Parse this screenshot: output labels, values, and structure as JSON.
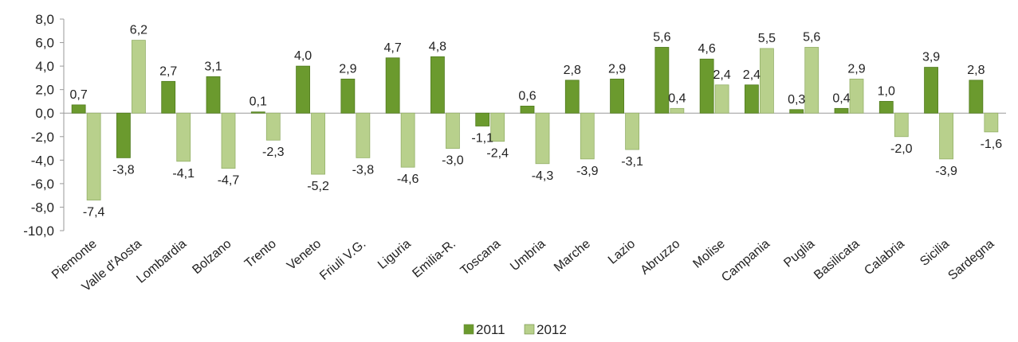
{
  "chart_data": {
    "type": "bar",
    "categories": [
      "Piemonte",
      "Valle d'Aosta",
      "Lombardia",
      "Bolzano",
      "Trento",
      "Veneto",
      "Friuli V.G.",
      "Liguria",
      "Emilia-R.",
      "Toscana",
      "Umbria",
      "Marche",
      "Lazio",
      "Abruzzo",
      "Molise",
      "Campania",
      "Puglia",
      "Basilicata",
      "Calabria",
      "Sicilia",
      "Sardegna"
    ],
    "series": [
      {
        "name": "2011",
        "color": "#6b9a2e",
        "values": [
          0.7,
          -3.8,
          2.7,
          3.1,
          0.1,
          4.0,
          2.9,
          4.7,
          4.8,
          -1.1,
          0.6,
          2.8,
          2.9,
          5.6,
          4.6,
          2.4,
          0.3,
          0.4,
          1.0,
          3.9,
          2.8
        ],
        "labels": [
          "0,7",
          "-3,8",
          "2,7",
          "3,1",
          "0,1",
          "4,0",
          "2,9",
          "4,7",
          "4,8",
          "-1,1",
          "0,6",
          "2,8",
          "2,9",
          "5,6",
          "4,6",
          "2,4",
          "0,3",
          "0,4",
          "1,0",
          "3,9",
          "2,8"
        ]
      },
      {
        "name": "2012",
        "color": "#b8d08c",
        "values": [
          -7.4,
          6.2,
          -4.1,
          -4.7,
          -2.3,
          -5.2,
          -3.8,
          -4.6,
          -3.0,
          -2.4,
          -4.3,
          -3.9,
          -3.1,
          0.4,
          2.4,
          5.5,
          5.6,
          2.9,
          -2.0,
          -3.9,
          -1.6
        ],
        "labels": [
          "-7,4",
          "6,2",
          "-4,1",
          "-4,7",
          "-2,3",
          "-5,2",
          "-3,8",
          "-4,6",
          "-3,0",
          "-2,4",
          "-4,3",
          "-3,9",
          "-3,1",
          "0,4",
          "2,4",
          "5,5",
          "5,6",
          "2,9",
          "-2,0",
          "-3,9",
          "-1,6"
        ]
      }
    ],
    "ylim": [
      -10,
      8
    ],
    "yticks": [
      8,
      6,
      4,
      2,
      0,
      -2,
      -4,
      -6,
      -8,
      -10
    ],
    "ytick_labels": [
      "8,0",
      "6,0",
      "4,0",
      "2,0",
      "0,0",
      "-2,0",
      "-4,0",
      "-6,0",
      "-8,0",
      "-10,0"
    ],
    "legend_position": "bottom",
    "grid": false,
    "title": "",
    "xlabel": "",
    "ylabel": ""
  }
}
